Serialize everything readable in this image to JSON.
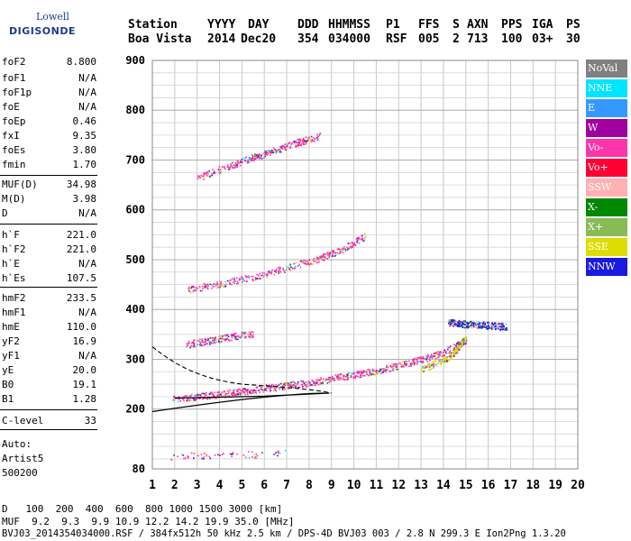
{
  "logo": {
    "line1": "Lowell",
    "line2": "DIGISONDE"
  },
  "header": {
    "labels": [
      {
        "text": "Station",
        "left": 142
      },
      {
        "text": "YYYY",
        "left": 230
      },
      {
        "text": "DAY",
        "left": 275
      },
      {
        "text": "DDD",
        "left": 330
      },
      {
        "text": "HHMMSS",
        "left": 364
      },
      {
        "text": "P1",
        "left": 428
      },
      {
        "text": "FFS",
        "left": 464
      },
      {
        "text": "S",
        "left": 502
      },
      {
        "text": "AXN",
        "left": 518
      },
      {
        "text": "PPS",
        "left": 556
      },
      {
        "text": "IGA",
        "left": 590
      },
      {
        "text": "PS",
        "left": 628
      }
    ],
    "values": [
      {
        "text": "Boa Vista",
        "left": 142
      },
      {
        "text": "2014",
        "left": 230
      },
      {
        "text": "Dec20",
        "left": 267
      },
      {
        "text": "354",
        "left": 330
      },
      {
        "text": "034000",
        "left": 364
      },
      {
        "text": "RSF",
        "left": 428
      },
      {
        "text": "005",
        "left": 464
      },
      {
        "text": "2",
        "left": 502
      },
      {
        "text": "713",
        "left": 518
      },
      {
        "text": "100",
        "left": 556
      },
      {
        "text": "03+",
        "left": 590
      },
      {
        "text": "30",
        "left": 628
      }
    ]
  },
  "params": [
    {
      "name": "foF2",
      "value": "8.800",
      "top": 62
    },
    {
      "name": "foF1",
      "value": "N/A",
      "top": 80
    },
    {
      "name": "foF1p",
      "value": "N/A",
      "top": 96
    },
    {
      "name": "foE",
      "value": "N/A",
      "top": 112
    },
    {
      "name": "foEp",
      "value": "0.46",
      "top": 128
    },
    {
      "name": "fxI",
      "value": "9.35",
      "top": 144
    },
    {
      "name": "foEs",
      "value": "3.80",
      "top": 160
    },
    {
      "name": "fmin",
      "value": "1.70",
      "top": 176
    },
    {
      "name": "MUF(D)",
      "value": "34.98",
      "top": 198
    },
    {
      "name": "M(D)",
      "value": "3.98",
      "top": 214
    },
    {
      "name": "D",
      "value": "N/A",
      "top": 230
    },
    {
      "name": "h`F",
      "value": "221.0",
      "top": 254
    },
    {
      "name": "h`F2",
      "value": "221.0",
      "top": 270
    },
    {
      "name": "h`E",
      "value": "N/A",
      "top": 286
    },
    {
      "name": "h`Es",
      "value": "107.5",
      "top": 302
    },
    {
      "name": "hmF2",
      "value": "233.5",
      "top": 324
    },
    {
      "name": "hmF1",
      "value": "N/A",
      "top": 340
    },
    {
      "name": "hmE",
      "value": "110.0",
      "top": 356
    },
    {
      "name": "yF2",
      "value": "16.9",
      "top": 372
    },
    {
      "name": "yF1",
      "value": "N/A",
      "top": 388
    },
    {
      "name": "yE",
      "value": "20.0",
      "top": 404
    },
    {
      "name": "B0",
      "value": "19.1",
      "top": 420
    },
    {
      "name": "B1",
      "value": "1.28",
      "top": 436
    },
    {
      "name": "C-level",
      "value": "33",
      "top": 460
    }
  ],
  "separators": [
    194,
    248,
    318,
    454,
    476
  ],
  "autoscale": {
    "line1": "Auto:",
    "line2": "Artist5",
    "line3": "500200"
  },
  "legend": [
    {
      "label": "NoVal",
      "color": "#808080"
    },
    {
      "label": "NNE",
      "color": "#00e5ff"
    },
    {
      "label": "E",
      "color": "#3399ff"
    },
    {
      "label": "W",
      "color": "#a000a0"
    },
    {
      "label": "Vo-",
      "color": "#ff33aa"
    },
    {
      "label": "Vo+",
      "color": "#ff0033"
    },
    {
      "label": "SSW",
      "color": "#ffb0b0"
    },
    {
      "label": "X-",
      "color": "#008800"
    },
    {
      "label": "X+",
      "color": "#88bb55"
    },
    {
      "label": "SSE",
      "color": "#dddd00"
    },
    {
      "label": "NNW",
      "color": "#1a1adc"
    }
  ],
  "footer": {
    "d_label": "D",
    "d_values": "100  200  400  600  800 1000 1500 3000 [km]",
    "muf_label": "MUF",
    "muf_values": "9.2  9.3  9.9 10.9 12.2 14.2 19.9 35.0 [MHz]",
    "file_line": "BVJ03_2014354034000.RSF / 384fx512h 50 kHz 2.5 km / DPS-4D BVJ03 003 / 2.8 N 299.3 E Ion2Png 1.3.20"
  },
  "chart_data": {
    "type": "scatter",
    "title": "",
    "xlabel": "",
    "ylabel": "",
    "xlim": [
      1,
      20
    ],
    "ylim": [
      80,
      900
    ],
    "x_ticks": [
      1,
      2,
      3,
      4,
      5,
      6,
      7,
      8,
      9,
      10,
      11,
      12,
      13,
      14,
      15,
      16,
      17,
      18,
      19,
      20
    ],
    "y_ticks": [
      80,
      200,
      300,
      400,
      500,
      600,
      700,
      800,
      900
    ],
    "grid": true,
    "traces": [
      {
        "name": "E-layer sporadic",
        "color": "#ff33aa",
        "x": [
          1.8,
          7.0
        ],
        "y": [
          105,
          112
        ]
      },
      {
        "name": "F-layer main trace",
        "color": "#ff33aa",
        "x": [
          1.9,
          3.0,
          4.0,
          5.0,
          6.0,
          7.0,
          8.0,
          9.0,
          10.0,
          11.0,
          12.0,
          13.0,
          14.0,
          15.0
        ],
        "y": [
          222,
          226,
          230,
          236,
          242,
          248,
          254,
          262,
          270,
          278,
          288,
          300,
          315,
          340
        ]
      },
      {
        "name": "F-layer second hop",
        "color": "#ff33aa",
        "x": [
          2.5,
          3.5,
          4.5,
          5.5
        ],
        "y": [
          330,
          338,
          346,
          352
        ]
      },
      {
        "name": "Multi-hop 2",
        "color": "#ff33aa",
        "x": [
          2.5,
          4.0,
          5.5,
          7.0,
          8.5,
          9.5,
          10.5
        ],
        "y": [
          440,
          452,
          466,
          484,
          504,
          522,
          548
        ]
      },
      {
        "name": "Multi-hop 3",
        "color": "#ff33aa",
        "x": [
          3.0,
          4.5,
          5.5,
          6.5,
          7.5,
          8.5
        ],
        "y": [
          665,
          690,
          706,
          720,
          736,
          750
        ]
      },
      {
        "name": "X-mode extension",
        "color": "#dddd00",
        "x": [
          13.0,
          14.0,
          14.5,
          15.0
        ],
        "y": [
          280,
          300,
          315,
          345
        ]
      },
      {
        "name": "NNW echoes",
        "color": "#1a1adc",
        "x": [
          14.2,
          14.8,
          15.5,
          16.2,
          16.8
        ],
        "y": [
          375,
          372,
          370,
          368,
          366
        ]
      }
    ]
  }
}
